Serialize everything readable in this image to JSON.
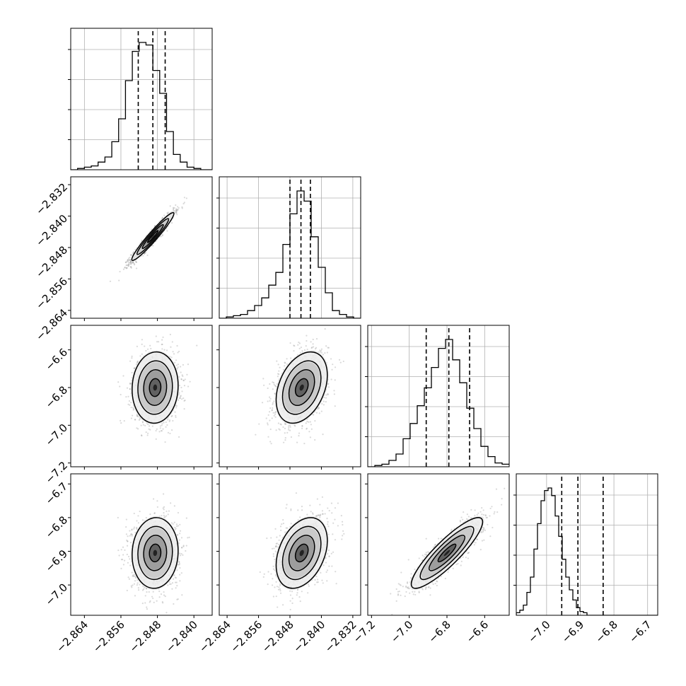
{
  "chart_data": {
    "type": "corner",
    "title": "",
    "grid": true,
    "parameters": [
      {
        "name": "",
        "range": [
          -2.867,
          -2.836
        ],
        "ticks": [
          -2.864,
          -2.856,
          -2.848,
          -2.84
        ],
        "tick_labels": [
          "−2.864",
          "−2.856",
          "−2.848",
          "−2.840"
        ]
      },
      {
        "name": "",
        "range": [
          -2.866,
          -2.83
        ],
        "ticks": [
          -2.864,
          -2.856,
          -2.848,
          -2.84,
          -2.832
        ],
        "tick_labels": [
          "−2.864",
          "−2.856",
          "−2.848",
          "−2.840",
          "−2.832"
        ]
      },
      {
        "name": "",
        "range": [
          -7.22,
          -6.47
        ],
        "ticks": [
          -7.2,
          -7.0,
          -6.8,
          -6.6
        ],
        "tick_labels": [
          "−7.2",
          "−7.0",
          "−6.8",
          "−6.6"
        ]
      },
      {
        "name": "",
        "range": [
          -7.09,
          -6.67
        ],
        "ticks": [
          -7.0,
          -6.9,
          -6.8,
          -6.7
        ],
        "tick_labels": [
          "−7.0",
          "−6.9",
          "−6.8",
          "−6.7"
        ]
      }
    ],
    "histograms": [
      {
        "param": 0,
        "bins_start": -2.867,
        "bin_width": 0.0015,
        "counts": [
          0.0,
          0.01,
          0.02,
          0.03,
          0.06,
          0.1,
          0.22,
          0.4,
          0.7,
          0.93,
          1.0,
          0.98,
          0.78,
          0.6,
          0.3,
          0.12,
          0.06,
          0.02,
          0.01,
          0.0,
          0.0
        ],
        "quantiles": [
          -2.8522,
          -2.849,
          -2.8463
        ]
      },
      {
        "param": 1,
        "bins_start": -2.866,
        "bin_width": 0.0018,
        "counts": [
          0.0,
          0.01,
          0.02,
          0.03,
          0.06,
          0.1,
          0.16,
          0.26,
          0.36,
          0.58,
          0.82,
          1.0,
          0.92,
          0.64,
          0.4,
          0.2,
          0.06,
          0.03,
          0.01,
          0.0
        ],
        "quantiles": [
          -2.848,
          -2.8452,
          -2.8428
        ]
      },
      {
        "param": 2,
        "bins_start": -7.22,
        "bin_width": 0.0375,
        "counts": [
          0.0,
          0.01,
          0.02,
          0.05,
          0.1,
          0.22,
          0.34,
          0.48,
          0.62,
          0.78,
          0.93,
          1.0,
          0.84,
          0.66,
          0.46,
          0.3,
          0.16,
          0.08,
          0.03,
          0.02
        ],
        "quantiles": [
          -6.91,
          -6.79,
          -6.68
        ]
      },
      {
        "param": 3,
        "bins_start": -7.09,
        "bin_width": 0.0105,
        "counts": [
          0.02,
          0.04,
          0.08,
          0.18,
          0.3,
          0.52,
          0.72,
          0.9,
          0.98,
          1.0,
          0.94,
          0.78,
          0.62,
          0.44,
          0.3,
          0.2,
          0.12,
          0.06,
          0.03,
          0.02,
          0.0,
          0.0,
          0.0,
          0.0,
          0.0,
          0.0,
          0.0,
          0.0,
          0.0,
          0.0,
          0.0,
          0.0,
          0.0,
          0.0,
          0.0,
          0.0,
          0.0,
          0.0,
          0.0,
          0.0
        ],
        "quantiles": [
          -6.955,
          -6.907,
          -6.832
        ]
      }
    ],
    "joint": [
      {
        "x": 0,
        "y": 1,
        "mean": [
          -2.849,
          -2.8452
        ],
        "sd": [
          0.0022,
          0.0029
        ],
        "corr": 0.96,
        "contour_levels_sigma": [
          0.5,
          1.0,
          1.5,
          2.0
        ]
      },
      {
        "x": 0,
        "y": 2,
        "mean": [
          -2.8485,
          -6.8
        ],
        "sd": [
          0.0024,
          0.09
        ],
        "corr": 0.05,
        "contour_levels_sigma": [
          0.5,
          1.0,
          1.5,
          2.0
        ]
      },
      {
        "x": 1,
        "y": 2,
        "mean": [
          -2.845,
          -6.8
        ],
        "sd": [
          0.0031,
          0.09
        ],
        "corr": 0.35,
        "contour_levels_sigma": [
          0.5,
          1.0,
          1.5,
          2.0
        ]
      },
      {
        "x": 0,
        "y": 3,
        "mean": [
          -2.8485,
          -6.905
        ],
        "sd": [
          0.0024,
          0.05
        ],
        "corr": 0.05,
        "contour_levels_sigma": [
          0.5,
          1.0,
          1.5,
          2.0
        ]
      },
      {
        "x": 1,
        "y": 3,
        "mean": [
          -2.845,
          -6.905
        ],
        "sd": [
          0.0031,
          0.05
        ],
        "corr": 0.35,
        "contour_levels_sigma": [
          0.5,
          1.0,
          1.5,
          2.0
        ]
      },
      {
        "x": 2,
        "y": 3,
        "mean": [
          -6.8,
          -6.905
        ],
        "sd": [
          0.09,
          0.05
        ],
        "corr": 0.88,
        "contour_levels_sigma": [
          0.5,
          1.0,
          1.5,
          2.0
        ]
      }
    ]
  }
}
